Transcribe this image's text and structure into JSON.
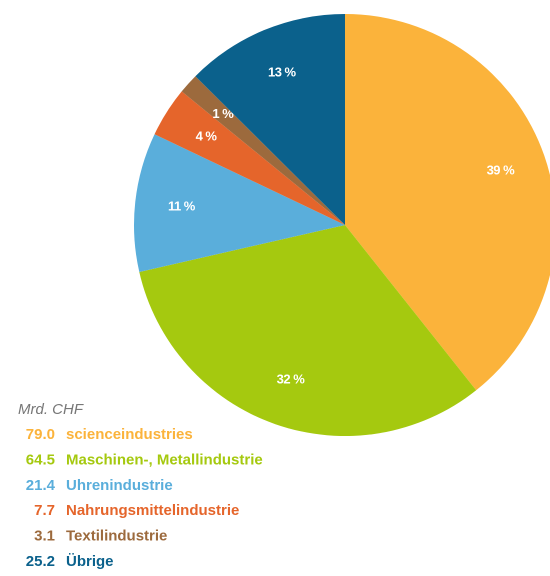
{
  "chart_data": {
    "type": "pie",
    "unit_label": "Mrd. CHF",
    "categories": [
      "scienceindustries",
      "Maschinen-, Metallindustrie",
      "Uhrenindustrie",
      "Nahrungsmittelindustrie",
      "Textilindustrie",
      "Übrige"
    ],
    "values": [
      79,
      64.5,
      21.4,
      7.7,
      3.1,
      25.2
    ],
    "value_labels": [
      "79.0",
      "64.5",
      "21.4",
      "7.7",
      "3.1",
      "25.2"
    ],
    "slice_labels": [
      "39 %",
      "32 %",
      "11 %",
      "4 %",
      "1 %",
      "13 %"
    ],
    "colors": [
      "#fbb33b",
      "#a5c90f",
      "#5aaedb",
      "#e5652b",
      "#9c6a3d",
      "#0b618c"
    ]
  }
}
